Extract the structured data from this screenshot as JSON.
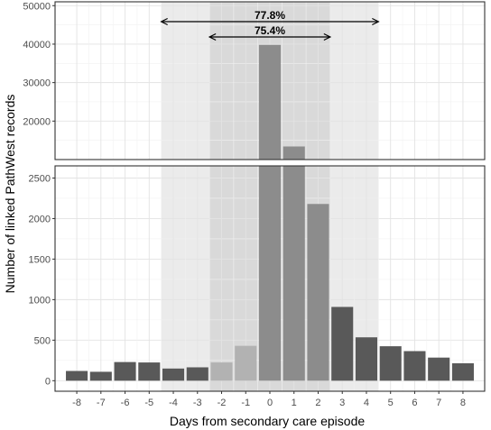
{
  "chart_data": {
    "type": "bar",
    "xlabel": "Days from secondary care episode",
    "ylabel": "Number of linked PathWest records",
    "categories": [
      "-8",
      "-7",
      "-6",
      "-5",
      "-4",
      "-3",
      "-2",
      "-1",
      "0",
      "1",
      "2",
      "3",
      "4",
      "5",
      "6",
      "7",
      "8"
    ],
    "values": [
      120,
      110,
      230,
      225,
      150,
      165,
      225,
      430,
      39800,
      13400,
      2180,
      910,
      535,
      425,
      365,
      285,
      215
    ],
    "bar_shade": [
      "dark",
      "dark",
      "dark",
      "dark",
      "dark",
      "dark",
      "light",
      "light",
      "mid",
      "mid",
      "mid",
      "dark",
      "dark",
      "dark",
      "dark",
      "dark",
      "dark"
    ],
    "colors": {
      "dark": "#595959",
      "light": "#b2b2b2",
      "mid": "#8c8c8c",
      "band_outer": "#ebebeb",
      "band_inner": "#d9d9d9"
    },
    "broken_axis": true,
    "panels": [
      {
        "name": "upper",
        "ylim": [
          10000,
          51000
        ],
        "yticks": [
          20000,
          30000,
          40000,
          50000
        ],
        "ytick_labels": [
          "20000",
          "30000",
          "40000",
          "50000"
        ]
      },
      {
        "name": "lower",
        "ylim": [
          -130,
          2650
        ],
        "yticks": [
          0,
          500,
          1000,
          1500,
          2000,
          2500
        ],
        "ytick_labels": [
          "0",
          "500",
          "1000",
          "1500",
          "2000",
          "2500"
        ]
      }
    ],
    "ranges": [
      {
        "label": "77.8%",
        "from": -4.5,
        "to": 4.5
      },
      {
        "label": "75.4%",
        "from": -2.5,
        "to": 2.5
      }
    ],
    "grid": true
  }
}
